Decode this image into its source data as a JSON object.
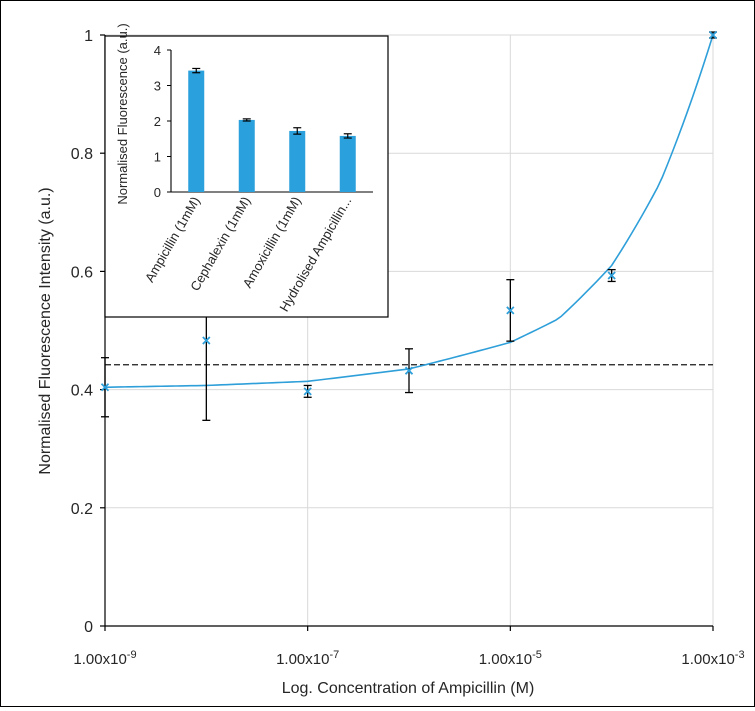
{
  "colors": {
    "series": "#2e9fd9",
    "bar": "#2aa0dc",
    "grid": "#d9d9d9",
    "axis": "#000000",
    "threshold": "#1a1a1a",
    "errorbar": "#000000"
  },
  "chart_data": [
    {
      "type": "scatter",
      "title": "",
      "xlabel": "Log. Concentration of Ampicillin (M)",
      "ylabel": "Normalised Fluorescence Intensity (a.u.)",
      "xscale": "log",
      "xlim": [
        1e-09,
        0.001
      ],
      "ylim": [
        0,
        1
      ],
      "xticks": [
        1e-09,
        1e-07,
        1e-05,
        0.001
      ],
      "xtick_labels": [
        {
          "base": "1.00x10",
          "exp": "-9"
        },
        {
          "base": "1.00x10",
          "exp": "-7"
        },
        {
          "base": "1.00x10",
          "exp": "-5"
        },
        {
          "base": "1.00x10",
          "exp": "-3"
        }
      ],
      "yticks": [
        "0",
        "0.2",
        "0.4",
        "0.6",
        "0.8",
        "1"
      ],
      "ytick_values": [
        0,
        0.2,
        0.4,
        0.6,
        0.8,
        1
      ],
      "grid": true,
      "points": [
        {
          "x": 1e-09,
          "y": 0.404,
          "err": 0.05
        },
        {
          "x": 1e-08,
          "y": 0.483,
          "err": 0.135
        },
        {
          "x": 1e-07,
          "y": 0.397,
          "err": 0.01
        },
        {
          "x": 1e-06,
          "y": 0.432,
          "err": 0.037
        },
        {
          "x": 1e-05,
          "y": 0.534,
          "err": 0.052
        },
        {
          "x": 0.0001,
          "y": 0.593,
          "err": 0.01
        },
        {
          "x": 0.001,
          "y": 1.0,
          "err": 0.005
        }
      ],
      "fit": {
        "type": "exponential-in-log-x",
        "description_points": [
          {
            "x": 1e-09,
            "y": 0.404
          },
          {
            "x": 1e-08,
            "y": 0.407
          },
          {
            "x": 1e-07,
            "y": 0.414
          },
          {
            "x": 1e-06,
            "y": 0.435
          },
          {
            "x": 1e-05,
            "y": 0.48
          },
          {
            "x": 3e-05,
            "y": 0.52
          },
          {
            "x": 0.0001,
            "y": 0.61
          },
          {
            "x": 0.0003,
            "y": 0.75
          },
          {
            "x": 0.001,
            "y": 1.0
          }
        ]
      },
      "threshold_line": {
        "y": 0.442,
        "style": "dashed"
      }
    },
    {
      "type": "bar",
      "title": "",
      "xlabel": "",
      "ylabel": "Normalised Fluorescence (a.u.)",
      "categories": [
        "Ampicillin (1mM)",
        "Cephalexin (1mM)",
        "Amoxicillin (1mM)",
        "Hydrolised Ampicillin..."
      ],
      "values": [
        3.42,
        2.03,
        1.72,
        1.58
      ],
      "errors": [
        0.06,
        0.03,
        0.09,
        0.06
      ],
      "ylim": [
        0,
        4
      ],
      "yticks": [
        "0",
        "1",
        "2",
        "3",
        "4"
      ],
      "ytick_values": [
        0,
        1,
        2,
        3,
        4
      ]
    }
  ]
}
